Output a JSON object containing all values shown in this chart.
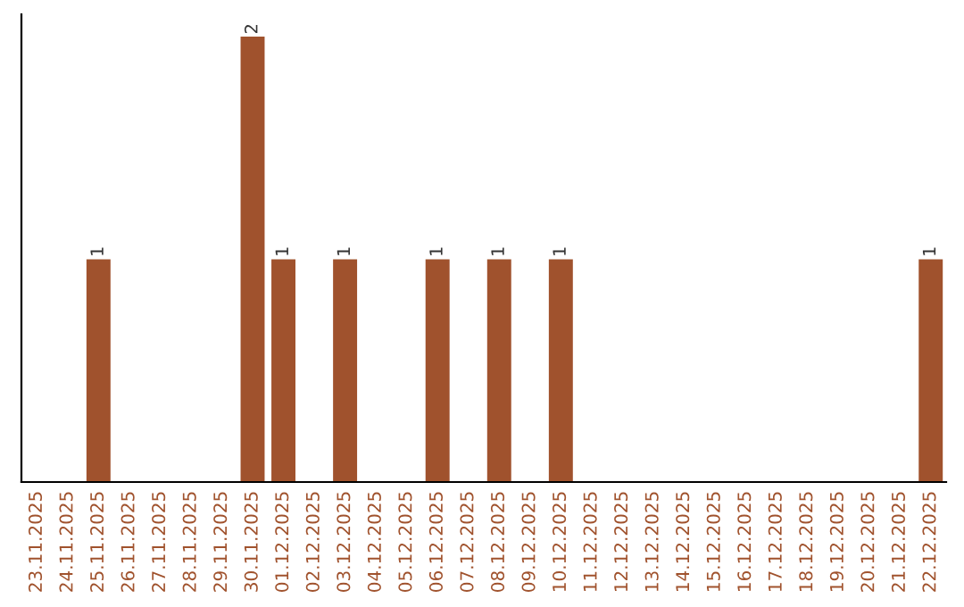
{
  "chart_data": {
    "type": "bar",
    "categories": [
      "23.11.2025",
      "24.11.2025",
      "25.11.2025",
      "26.11.2025",
      "27.11.2025",
      "28.11.2025",
      "29.11.2025",
      "30.11.2025",
      "01.12.2025",
      "02.12.2025",
      "03.12.2025",
      "04.12.2025",
      "05.12.2025",
      "06.12.2025",
      "07.12.2025",
      "08.12.2025",
      "09.12.2025",
      "10.12.2025",
      "11.12.2025",
      "12.12.2025",
      "13.12.2025",
      "14.12.2025",
      "15.12.2025",
      "16.12.2025",
      "17.12.2025",
      "18.12.2025",
      "19.12.2025",
      "20.12.2025",
      "21.12.2025",
      "22.12.2025"
    ],
    "values": [
      0,
      0,
      1,
      0,
      0,
      0,
      0,
      2,
      1,
      0,
      1,
      0,
      0,
      1,
      0,
      1,
      0,
      1,
      0,
      0,
      0,
      0,
      0,
      0,
      0,
      0,
      0,
      0,
      0,
      1
    ],
    "value_labels": [
      null,
      null,
      "1",
      null,
      null,
      null,
      null,
      "2",
      "1",
      null,
      "1",
      null,
      null,
      "1",
      null,
      "1",
      null,
      "1",
      null,
      null,
      null,
      null,
      null,
      null,
      null,
      null,
      null,
      null,
      null,
      "1"
    ],
    "color": "#a0522d",
    "ylim": [
      0,
      2.1
    ],
    "tick_labels": "x",
    "grid": false,
    "legend": false
  }
}
